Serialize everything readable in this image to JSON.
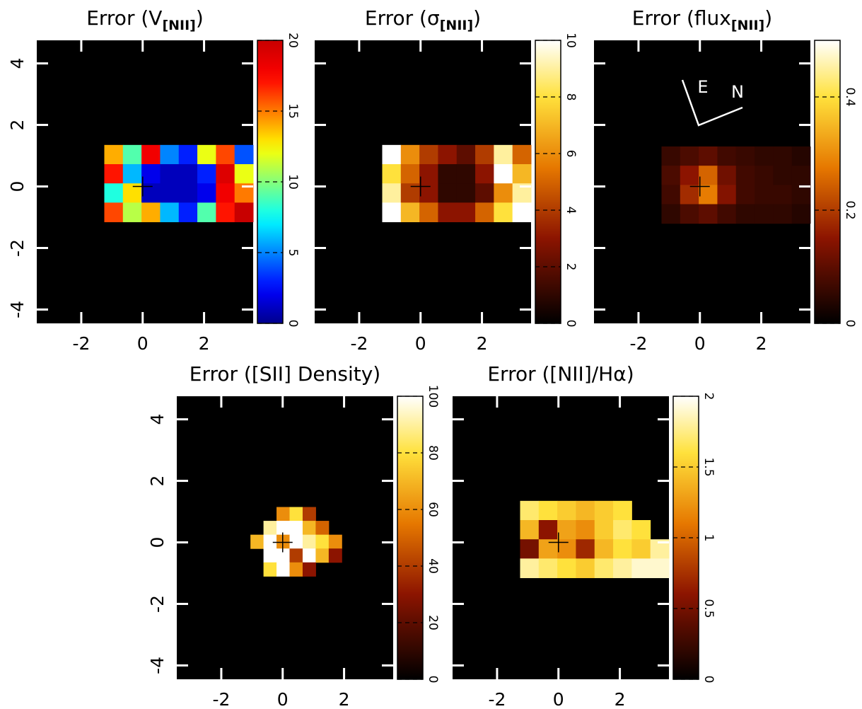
{
  "chart_data": [
    {
      "type": "heatmap",
      "title": {
        "text": "Error (V",
        "subscript": "[NII]",
        "suffix": ")"
      },
      "xlim": [
        -3.45,
        3.6
      ],
      "ylim": [
        -4.45,
        4.75
      ],
      "xticks": [
        -2,
        0,
        2
      ],
      "yticks": [
        -4,
        -2,
        0,
        2,
        4
      ],
      "y_tick_labels": true,
      "extent": {
        "x": [
          -1.25,
          3.6
        ],
        "y": [
          -1.15,
          1.35
        ]
      },
      "cross": [
        0,
        0
      ],
      "values": [
        [
          14,
          9,
          18,
          5,
          3,
          12,
          16,
          4
        ],
        [
          17,
          6,
          2,
          1,
          1,
          3,
          19,
          12
        ],
        [
          8,
          13,
          1,
          1,
          1,
          2,
          18,
          15
        ],
        [
          16,
          11,
          14,
          6,
          3,
          9,
          17,
          20
        ]
      ],
      "colorbar": {
        "lim": [
          0,
          20
        ],
        "ticks": [
          0,
          5,
          10,
          15,
          20
        ],
        "colormap": "jet"
      }
    },
    {
      "type": "heatmap",
      "title": {
        "text": "Error (σ",
        "subscript": "[NII]",
        "suffix": ")"
      },
      "xlim": [
        -3.45,
        3.6
      ],
      "ylim": [
        -4.45,
        4.75
      ],
      "xticks": [
        -2,
        0,
        2
      ],
      "yticks": [
        -4,
        -2,
        0,
        2,
        4
      ],
      "y_tick_labels": false,
      "extent": {
        "x": [
          -1.25,
          3.6
        ],
        "y": [
          -1.15,
          1.35
        ]
      },
      "cross": [
        0,
        0
      ],
      "values": [
        [
          10,
          6,
          4,
          3,
          2,
          4,
          9,
          5
        ],
        [
          8,
          5,
          3,
          1,
          1,
          3,
          10,
          7
        ],
        [
          9,
          4,
          3,
          1,
          1,
          2,
          6,
          9
        ],
        [
          10,
          7,
          5,
          3,
          3,
          5,
          8,
          10
        ]
      ],
      "colorbar": {
        "lim": [
          0,
          10
        ],
        "ticks": [
          0,
          2,
          4,
          6,
          8,
          10
        ],
        "colormap": "heat"
      }
    },
    {
      "type": "heatmap",
      "title": {
        "text": "Error (flux",
        "subscript": "[NII]",
        "suffix": ")"
      },
      "xlim": [
        -3.45,
        3.6
      ],
      "ylim": [
        -4.45,
        4.75
      ],
      "xticks": [
        -2,
        0,
        2
      ],
      "yticks": [
        -4,
        -2,
        0,
        2,
        4
      ],
      "y_tick_labels": false,
      "extent": {
        "x": [
          -1.25,
          3.6
        ],
        "y": [
          -1.2,
          1.3
        ]
      },
      "cross": [
        0,
        0
      ],
      "values": [
        [
          0.06,
          0.08,
          0.1,
          0.07,
          0.06,
          0.05,
          0.05,
          0.04
        ],
        [
          0.08,
          0.15,
          0.25,
          0.12,
          0.07,
          0.06,
          0.05,
          0.05
        ],
        [
          0.07,
          0.18,
          0.28,
          0.14,
          0.07,
          0.06,
          0.06,
          0.05
        ],
        [
          0.05,
          0.08,
          0.1,
          0.07,
          0.05,
          0.05,
          0.05,
          0.04
        ]
      ],
      "colorbar": {
        "lim": [
          0,
          0.5
        ],
        "ticks": [
          0,
          0.2,
          0.4
        ],
        "colormap": "heat"
      },
      "annotations": [
        "E",
        "N"
      ]
    },
    {
      "type": "heatmap",
      "title": {
        "text": "Error ([SII] Density)"
      },
      "xlim": [
        -3.45,
        3.6
      ],
      "ylim": [
        -4.45,
        4.75
      ],
      "xticks": [
        -2,
        0,
        2
      ],
      "yticks": [
        -4,
        -2,
        0,
        2,
        4
      ],
      "y_tick_labels": true,
      "extent": {
        "x": [
          -1.05,
          2.35
        ],
        "y": [
          -1.1,
          1.15
        ]
      },
      "cross": [
        0,
        0
      ],
      "values": [
        [
          null,
          null,
          60,
          80,
          40,
          null,
          null,
          null
        ],
        [
          null,
          90,
          100,
          100,
          70,
          50,
          null,
          null
        ],
        [
          70,
          100,
          60,
          100,
          90,
          80,
          60,
          null
        ],
        [
          null,
          100,
          100,
          40,
          100,
          70,
          30,
          null
        ],
        [
          null,
          80,
          100,
          60,
          30,
          null,
          null,
          null
        ]
      ],
      "colorbar": {
        "lim": [
          0,
          100
        ],
        "ticks": [
          0,
          20,
          40,
          60,
          80,
          100
        ],
        "colormap": "heat"
      }
    },
    {
      "type": "heatmap",
      "title": {
        "text": "Error ([NII]/Hα)"
      },
      "xlim": [
        -3.45,
        3.6
      ],
      "ylim": [
        -4.45,
        4.75
      ],
      "xticks": [
        -2,
        0,
        2
      ],
      "yticks": [
        -4,
        -2,
        0,
        2,
        4
      ],
      "y_tick_labels": false,
      "extent": {
        "x": [
          -1.25,
          3.6
        ],
        "y": [
          -1.15,
          1.35
        ]
      },
      "cross": [
        0,
        0
      ],
      "values": [
        [
          1.7,
          1.6,
          1.5,
          1.4,
          1.5,
          1.6,
          null,
          null
        ],
        [
          1.4,
          0.6,
          1.3,
          1.2,
          1.5,
          1.7,
          1.6,
          null
        ],
        [
          0.5,
          1.3,
          1.2,
          0.7,
          1.4,
          1.6,
          1.5,
          1.8
        ],
        [
          1.8,
          1.7,
          1.6,
          1.5,
          1.7,
          1.8,
          1.9,
          1.9
        ]
      ],
      "colorbar": {
        "lim": [
          0,
          2
        ],
        "ticks": [
          0,
          0.5,
          1,
          1.5,
          2
        ],
        "colormap": "heat"
      }
    }
  ]
}
